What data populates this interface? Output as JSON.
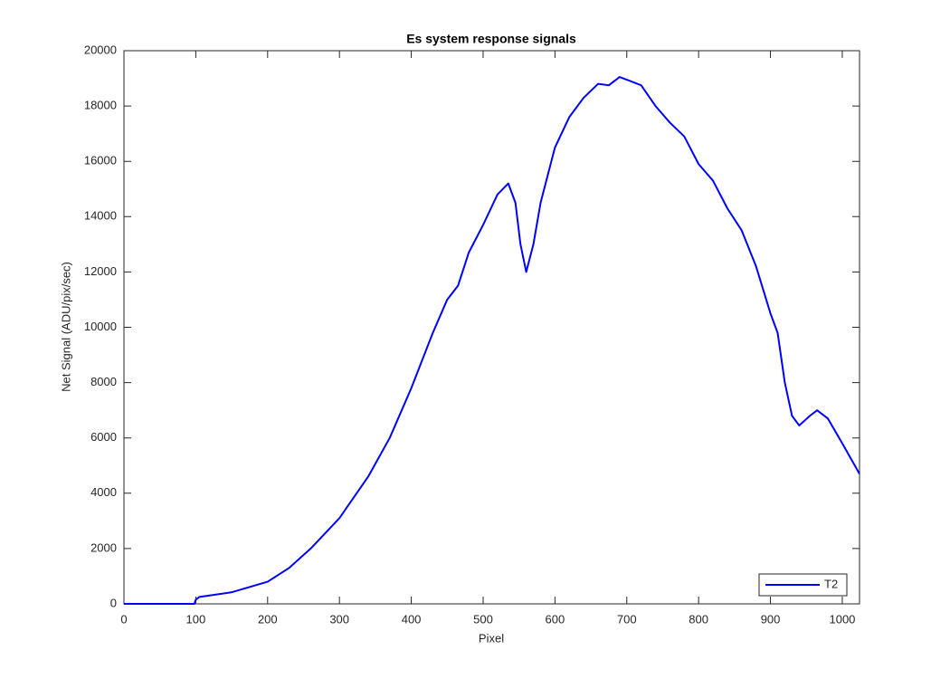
{
  "chart_data": {
    "type": "line",
    "title": "Es system response signals",
    "xlabel": "Pixel",
    "ylabel": "Net Signal (ADU/pix/sec)",
    "x": [
      0,
      50,
      98,
      100,
      105,
      150,
      200,
      230,
      260,
      300,
      340,
      370,
      400,
      430,
      450,
      465,
      480,
      500,
      520,
      535,
      545,
      552,
      560,
      570,
      580,
      600,
      620,
      640,
      660,
      675,
      690,
      705,
      720,
      740,
      760,
      780,
      800,
      820,
      840,
      860,
      880,
      900,
      910,
      920,
      930,
      940,
      955,
      965,
      980,
      1000,
      1024
    ],
    "series": [
      {
        "name": "T2",
        "color": "#0000ff",
        "values": [
          0,
          0,
          0,
          150,
          250,
          420,
          800,
          1300,
          2000,
          3100,
          4600,
          6000,
          7800,
          9800,
          11000,
          11500,
          12700,
          13700,
          14800,
          15200,
          14500,
          13000,
          12000,
          13000,
          14500,
          16500,
          17600,
          18300,
          18800,
          18750,
          19050,
          18900,
          18750,
          18000,
          17400,
          16900,
          15900,
          15300,
          14300,
          13500,
          12200,
          10500,
          9800,
          8000,
          6800,
          6450,
          6800,
          7000,
          6700,
          5800,
          4700
        ]
      }
    ],
    "xlim": [
      0,
      1024
    ],
    "xticks": [
      0,
      100,
      200,
      300,
      400,
      500,
      600,
      700,
      800,
      900,
      1000
    ],
    "ylim": [
      0,
      20000
    ],
    "yticks": [
      0,
      2000,
      4000,
      6000,
      8000,
      10000,
      12000,
      14000,
      16000,
      18000,
      20000
    ],
    "legend": "lower right"
  }
}
